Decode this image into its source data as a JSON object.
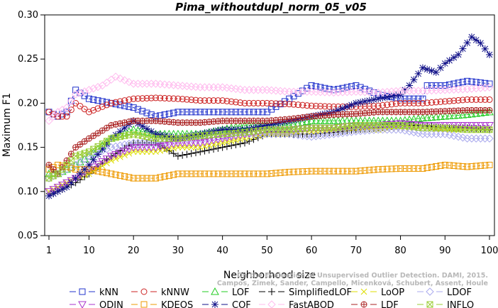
{
  "chart_data": {
    "type": "line",
    "title": "Pima_withoutdupl_norm_05_v05",
    "xlabel": "Neighborhood size",
    "ylabel": "Maximum F1",
    "xlim": [
      1,
      100
    ],
    "ylim": [
      0.05,
      0.3
    ],
    "x_ticks": [
      1,
      10,
      20,
      30,
      40,
      50,
      60,
      70,
      80,
      90,
      100
    ],
    "y_ticks": [
      0.05,
      0.1,
      0.15,
      0.2,
      0.25,
      0.3
    ],
    "y_tick_labels": [
      "0.05",
      "0.10",
      "0.15",
      "0.20",
      "0.25",
      "0.30"
    ],
    "grid": false,
    "legend_position": "bottom",
    "watermark": [
      "Campos, Zimek, Sander, Campello, Micenková, Schubert, Assent, Houle",
      "On the Evaluation of Unsupervised Outlier Detection. DAMI, 2015."
    ],
    "series": [
      {
        "name": "kNN",
        "color": "#2233cc",
        "marker": "square",
        "dash": "dash",
        "points": [
          [
            1,
            0.19
          ],
          [
            3,
            0.185
          ],
          [
            5,
            0.19
          ],
          [
            7,
            0.215
          ],
          [
            10,
            0.205
          ],
          [
            15,
            0.2
          ],
          [
            20,
            0.195
          ],
          [
            25,
            0.185
          ],
          [
            30,
            0.19
          ],
          [
            35,
            0.19
          ],
          [
            40,
            0.19
          ],
          [
            45,
            0.19
          ],
          [
            50,
            0.19
          ],
          [
            55,
            0.205
          ],
          [
            60,
            0.22
          ],
          [
            65,
            0.215
          ],
          [
            70,
            0.22
          ],
          [
            75,
            0.21
          ],
          [
            80,
            0.205
          ],
          [
            85,
            0.205
          ],
          [
            86,
            0.22
          ],
          [
            90,
            0.22
          ],
          [
            95,
            0.225
          ],
          [
            100,
            0.222
          ]
        ]
      },
      {
        "name": "kNNW",
        "color": "#cc2222",
        "marker": "circle",
        "dash": "dash",
        "points": [
          [
            1,
            0.19
          ],
          [
            3,
            0.185
          ],
          [
            5,
            0.185
          ],
          [
            7,
            0.2
          ],
          [
            10,
            0.19
          ],
          [
            15,
            0.2
          ],
          [
            20,
            0.205
          ],
          [
            25,
            0.206
          ],
          [
            30,
            0.205
          ],
          [
            35,
            0.203
          ],
          [
            40,
            0.203
          ],
          [
            45,
            0.2
          ],
          [
            50,
            0.2
          ],
          [
            55,
            0.199
          ],
          [
            60,
            0.197
          ],
          [
            65,
            0.196
          ],
          [
            70,
            0.196
          ],
          [
            75,
            0.197
          ],
          [
            80,
            0.2
          ],
          [
            85,
            0.2
          ],
          [
            90,
            0.202
          ],
          [
            95,
            0.204
          ],
          [
            100,
            0.204
          ]
        ]
      },
      {
        "name": "LOF",
        "color": "#22cc22",
        "marker": "triangle",
        "dash": "dash",
        "points": [
          [
            1,
            0.12
          ],
          [
            3,
            0.12
          ],
          [
            5,
            0.125
          ],
          [
            7,
            0.13
          ],
          [
            10,
            0.14
          ],
          [
            15,
            0.16
          ],
          [
            20,
            0.17
          ],
          [
            25,
            0.165
          ],
          [
            30,
            0.165
          ],
          [
            35,
            0.165
          ],
          [
            40,
            0.17
          ],
          [
            45,
            0.175
          ],
          [
            50,
            0.175
          ],
          [
            55,
            0.175
          ],
          [
            60,
            0.18
          ],
          [
            65,
            0.18
          ],
          [
            70,
            0.18
          ],
          [
            75,
            0.18
          ],
          [
            80,
            0.18
          ],
          [
            85,
            0.183
          ],
          [
            90,
            0.185
          ],
          [
            95,
            0.187
          ],
          [
            100,
            0.19
          ]
        ]
      },
      {
        "name": "SimplifiedLOF",
        "color": "#000000",
        "marker": "plus",
        "dash": "dash",
        "points": [
          [
            1,
            0.095
          ],
          [
            3,
            0.1
          ],
          [
            5,
            0.105
          ],
          [
            7,
            0.11
          ],
          [
            10,
            0.12
          ],
          [
            15,
            0.14
          ],
          [
            20,
            0.155
          ],
          [
            25,
            0.155
          ],
          [
            30,
            0.14
          ],
          [
            35,
            0.145
          ],
          [
            40,
            0.15
          ],
          [
            45,
            0.155
          ],
          [
            50,
            0.165
          ],
          [
            55,
            0.165
          ],
          [
            60,
            0.165
          ],
          [
            65,
            0.167
          ],
          [
            70,
            0.17
          ],
          [
            75,
            0.172
          ],
          [
            80,
            0.175
          ],
          [
            85,
            0.175
          ],
          [
            90,
            0.172
          ],
          [
            95,
            0.172
          ],
          [
            100,
            0.17
          ]
        ]
      },
      {
        "name": "LoOP",
        "color": "#dddd00",
        "marker": "x",
        "dash": "dash",
        "points": [
          [
            1,
            0.1
          ],
          [
            3,
            0.105
          ],
          [
            5,
            0.11
          ],
          [
            7,
            0.115
          ],
          [
            10,
            0.12
          ],
          [
            15,
            0.135
          ],
          [
            20,
            0.145
          ],
          [
            25,
            0.145
          ],
          [
            30,
            0.15
          ],
          [
            35,
            0.15
          ],
          [
            40,
            0.155
          ],
          [
            45,
            0.16
          ],
          [
            50,
            0.165
          ],
          [
            55,
            0.165
          ],
          [
            60,
            0.168
          ],
          [
            65,
            0.17
          ],
          [
            70,
            0.17
          ],
          [
            75,
            0.17
          ],
          [
            80,
            0.172
          ],
          [
            85,
            0.172
          ],
          [
            90,
            0.17
          ],
          [
            95,
            0.17
          ],
          [
            100,
            0.17
          ]
        ]
      },
      {
        "name": "LDOF",
        "color": "#aaaaee",
        "marker": "diamond",
        "dash": "dash",
        "points": [
          [
            1,
            0.115
          ],
          [
            3,
            0.12
          ],
          [
            5,
            0.125
          ],
          [
            7,
            0.13
          ],
          [
            10,
            0.14
          ],
          [
            15,
            0.15
          ],
          [
            20,
            0.155
          ],
          [
            25,
            0.155
          ],
          [
            30,
            0.16
          ],
          [
            35,
            0.16
          ],
          [
            40,
            0.163
          ],
          [
            45,
            0.165
          ],
          [
            50,
            0.165
          ],
          [
            55,
            0.165
          ],
          [
            60,
            0.162
          ],
          [
            65,
            0.165
          ],
          [
            70,
            0.168
          ],
          [
            75,
            0.17
          ],
          [
            80,
            0.17
          ],
          [
            85,
            0.165
          ],
          [
            90,
            0.165
          ],
          [
            95,
            0.16
          ],
          [
            100,
            0.16
          ]
        ]
      },
      {
        "name": "ODIN",
        "color": "#aa33cc",
        "marker": "triangle-down",
        "dash": "dash",
        "points": [
          [
            1,
            0.1
          ],
          [
            3,
            0.105
          ],
          [
            5,
            0.11
          ],
          [
            7,
            0.115
          ],
          [
            10,
            0.125
          ],
          [
            15,
            0.14
          ],
          [
            20,
            0.15
          ],
          [
            25,
            0.15
          ],
          [
            30,
            0.155
          ],
          [
            35,
            0.155
          ],
          [
            40,
            0.16
          ],
          [
            45,
            0.165
          ],
          [
            50,
            0.17
          ],
          [
            55,
            0.17
          ],
          [
            60,
            0.172
          ],
          [
            65,
            0.172
          ],
          [
            70,
            0.175
          ],
          [
            75,
            0.175
          ],
          [
            80,
            0.177
          ],
          [
            85,
            0.175
          ],
          [
            90,
            0.175
          ],
          [
            95,
            0.175
          ],
          [
            100,
            0.175
          ]
        ]
      },
      {
        "name": "KDEOS",
        "color": "#ee9900",
        "marker": "square",
        "dash": "dash",
        "points": [
          [
            1,
            0.125
          ],
          [
            3,
            0.13
          ],
          [
            5,
            0.128
          ],
          [
            7,
            0.125
          ],
          [
            10,
            0.125
          ],
          [
            15,
            0.12
          ],
          [
            20,
            0.115
          ],
          [
            25,
            0.115
          ],
          [
            30,
            0.12
          ],
          [
            35,
            0.12
          ],
          [
            40,
            0.12
          ],
          [
            45,
            0.12
          ],
          [
            50,
            0.12
          ],
          [
            55,
            0.122
          ],
          [
            60,
            0.123
          ],
          [
            65,
            0.123
          ],
          [
            70,
            0.123
          ],
          [
            75,
            0.125
          ],
          [
            80,
            0.126
          ],
          [
            85,
            0.126
          ],
          [
            90,
            0.13
          ],
          [
            95,
            0.128
          ],
          [
            100,
            0.13
          ]
        ]
      },
      {
        "name": "COF",
        "color": "#111188",
        "marker": "star",
        "dash": "dash",
        "points": [
          [
            1,
            0.095
          ],
          [
            3,
            0.1
          ],
          [
            5,
            0.105
          ],
          [
            7,
            0.115
          ],
          [
            10,
            0.13
          ],
          [
            15,
            0.16
          ],
          [
            20,
            0.18
          ],
          [
            25,
            0.165
          ],
          [
            30,
            0.16
          ],
          [
            35,
            0.165
          ],
          [
            40,
            0.17
          ],
          [
            45,
            0.17
          ],
          [
            50,
            0.175
          ],
          [
            55,
            0.18
          ],
          [
            60,
            0.185
          ],
          [
            65,
            0.19
          ],
          [
            70,
            0.2
          ],
          [
            75,
            0.205
          ],
          [
            80,
            0.21
          ],
          [
            82,
            0.22
          ],
          [
            85,
            0.24
          ],
          [
            88,
            0.235
          ],
          [
            90,
            0.245
          ],
          [
            93,
            0.255
          ],
          [
            96,
            0.275
          ],
          [
            98,
            0.268
          ],
          [
            100,
            0.255
          ]
        ]
      },
      {
        "name": "FastABOD",
        "color": "#ffbbee",
        "marker": "diamond",
        "dash": "dash",
        "points": [
          [
            1,
            0.18
          ],
          [
            3,
            0.19
          ],
          [
            5,
            0.195
          ],
          [
            7,
            0.21
          ],
          [
            10,
            0.215
          ],
          [
            13,
            0.22
          ],
          [
            16,
            0.23
          ],
          [
            20,
            0.222
          ],
          [
            25,
            0.222
          ],
          [
            30,
            0.22
          ],
          [
            35,
            0.218
          ],
          [
            40,
            0.218
          ],
          [
            45,
            0.215
          ],
          [
            50,
            0.215
          ],
          [
            55,
            0.213
          ],
          [
            60,
            0.213
          ],
          [
            65,
            0.212
          ],
          [
            70,
            0.213
          ],
          [
            75,
            0.212
          ],
          [
            80,
            0.214
          ],
          [
            85,
            0.214
          ],
          [
            90,
            0.215
          ],
          [
            95,
            0.216
          ],
          [
            100,
            0.218
          ]
        ]
      },
      {
        "name": "LDF",
        "color": "#aa2222",
        "marker": "circle-plus",
        "dash": "dash",
        "points": [
          [
            1,
            0.13
          ],
          [
            3,
            0.12
          ],
          [
            5,
            0.135
          ],
          [
            7,
            0.15
          ],
          [
            10,
            0.16
          ],
          [
            15,
            0.175
          ],
          [
            20,
            0.18
          ],
          [
            25,
            0.18
          ],
          [
            30,
            0.178
          ],
          [
            35,
            0.178
          ],
          [
            40,
            0.18
          ],
          [
            45,
            0.18
          ],
          [
            50,
            0.18
          ],
          [
            55,
            0.182
          ],
          [
            60,
            0.185
          ],
          [
            65,
            0.187
          ],
          [
            70,
            0.188
          ],
          [
            75,
            0.19
          ],
          [
            80,
            0.19
          ],
          [
            85,
            0.19
          ],
          [
            90,
            0.191
          ],
          [
            95,
            0.192
          ],
          [
            100,
            0.192
          ]
        ]
      },
      {
        "name": "INFLO",
        "color": "#99cc33",
        "marker": "asterisk",
        "dash": "dash",
        "points": [
          [
            1,
            0.115
          ],
          [
            3,
            0.12
          ],
          [
            5,
            0.13
          ],
          [
            7,
            0.14
          ],
          [
            10,
            0.145
          ],
          [
            15,
            0.16
          ],
          [
            20,
            0.165
          ],
          [
            25,
            0.16
          ],
          [
            30,
            0.16
          ],
          [
            35,
            0.163
          ],
          [
            40,
            0.165
          ],
          [
            45,
            0.167
          ],
          [
            50,
            0.17
          ],
          [
            55,
            0.17
          ],
          [
            60,
            0.172
          ],
          [
            65,
            0.172
          ],
          [
            70,
            0.175
          ],
          [
            75,
            0.175
          ],
          [
            80,
            0.175
          ],
          [
            85,
            0.172
          ],
          [
            90,
            0.172
          ],
          [
            95,
            0.17
          ],
          [
            100,
            0.17
          ]
        ]
      }
    ]
  }
}
